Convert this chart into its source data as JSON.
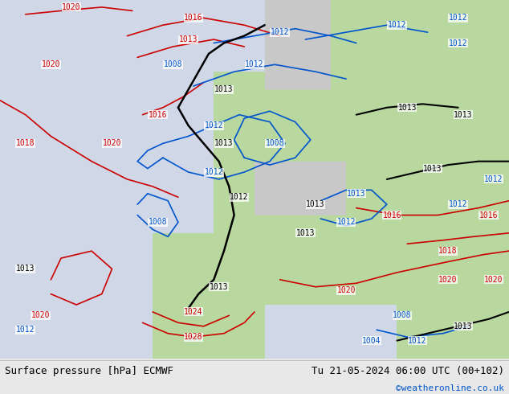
{
  "title_left": "Surface pressure [hPa] ECMWF",
  "title_right": "Tu 21-05-2024 06:00 UTC (00+102)",
  "watermark": "©weatheronline.co.uk",
  "watermark_color": "#0055cc",
  "bg_color_sea": "#d0d8e8",
  "bg_color_land": "#b8d8a0",
  "bg_color_mountain": "#c8c8c8",
  "footer_bg": "#e8e8e8",
  "footer_text_color": "#000000",
  "contour_color_red": "#cc0000",
  "contour_color_blue": "#0055cc",
  "contour_color_black": "#000000",
  "label_fontsize": 7,
  "footer_fontsize": 9,
  "fig_width": 6.34,
  "fig_height": 4.9
}
